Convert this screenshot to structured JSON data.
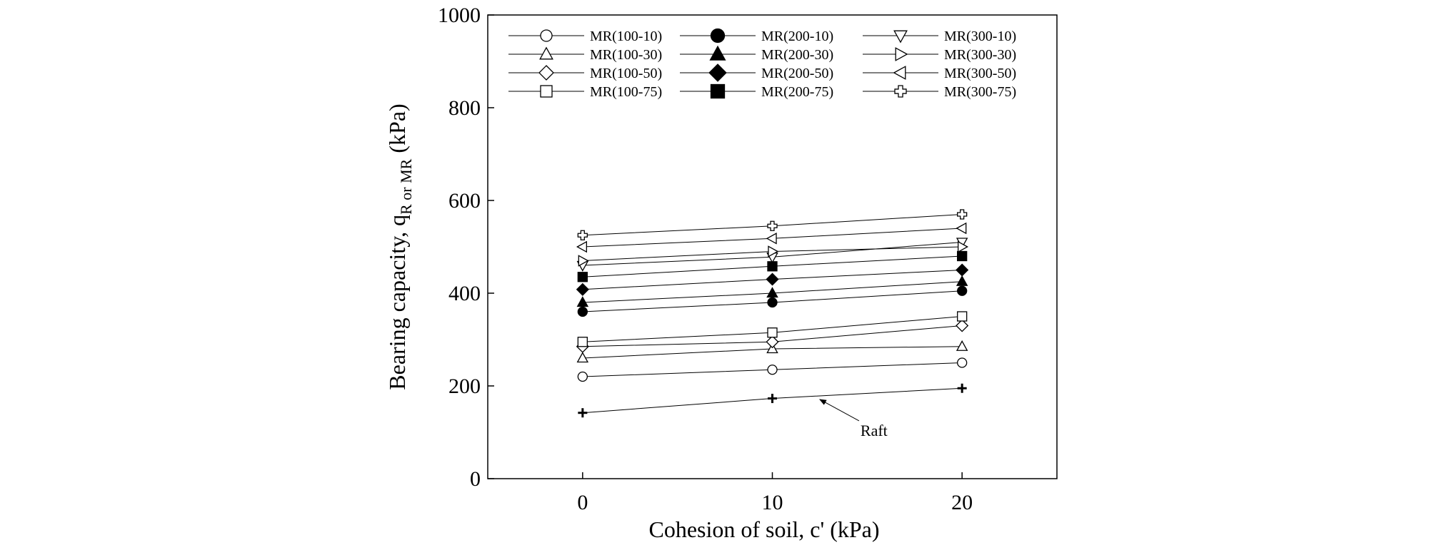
{
  "chart_data": {
    "type": "line",
    "xlabel": "Cohesion of soil, c' (kPa)",
    "ylabel": {
      "main": "Bearing capacity, q",
      "sub": "R or MR",
      "unit": " (kPa)"
    },
    "x": [
      0,
      10,
      20
    ],
    "xlim": [
      -5,
      25
    ],
    "ylim": [
      0,
      1000
    ],
    "x_ticks": [
      "0",
      "10",
      "20"
    ],
    "y_ticks": [
      "0",
      "200",
      "400",
      "600",
      "800",
      "1000"
    ],
    "grid": false,
    "legend_position": "top",
    "series": [
      {
        "name": "MR(100-10)",
        "marker": "circle-open",
        "values": [
          220,
          235,
          250
        ]
      },
      {
        "name": "MR(100-30)",
        "marker": "triangle-up-open",
        "values": [
          260,
          280,
          285
        ]
      },
      {
        "name": "MR(100-50)",
        "marker": "diamond-open",
        "values": [
          285,
          295,
          330
        ]
      },
      {
        "name": "MR(100-75)",
        "marker": "square-open",
        "values": [
          295,
          315,
          350
        ]
      },
      {
        "name": "MR(200-10)",
        "marker": "circle-filled",
        "values": [
          360,
          380,
          405
        ]
      },
      {
        "name": "MR(200-30)",
        "marker": "triangle-up-filled",
        "values": [
          380,
          400,
          425
        ]
      },
      {
        "name": "MR(200-50)",
        "marker": "diamond-filled",
        "values": [
          408,
          430,
          450
        ]
      },
      {
        "name": "MR(200-75)",
        "marker": "square-filled",
        "values": [
          435,
          458,
          480
        ]
      },
      {
        "name": "MR(300-10)",
        "marker": "triangle-down-open",
        "values": [
          460,
          478,
          510
        ]
      },
      {
        "name": "MR(300-30)",
        "marker": "triangle-right-open",
        "values": [
          470,
          490,
          500
        ]
      },
      {
        "name": "MR(300-50)",
        "marker": "triangle-left-open",
        "values": [
          500,
          518,
          540
        ]
      },
      {
        "name": "MR(300-75)",
        "marker": "cross-open",
        "values": [
          525,
          545,
          570
        ]
      },
      {
        "marker": "plus-bold",
        "values": [
          142,
          173,
          195
        ]
      }
    ],
    "annotations": [
      {
        "text": "Raft",
        "target_series": 12,
        "target_x": 12.5
      }
    ]
  }
}
